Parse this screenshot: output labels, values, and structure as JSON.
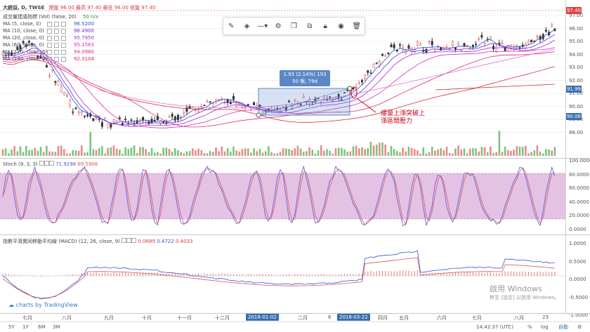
{
  "header": {
    "symbol": "大統益, D, TWSE",
    "ohlc": "開盤 96.00 最高 97.40 最低 96.00 收盤 97.40",
    "volume_label": "成交量建議指標 (Vol) (false, 20)",
    "volume_value": "50 n/a"
  },
  "ma_legend": [
    {
      "label": "MA (5, close, 0)",
      "value": "96.5200",
      "color": "#1f4ed8"
    },
    {
      "label": "MA (10, close, 0)",
      "value": "96.4900",
      "color": "#6b2fd6"
    },
    {
      "label": "MA (20, close, 0)",
      "value": "95.7950",
      "color": "#9a2fd6"
    },
    {
      "label": "MA (60, close, 0)",
      "value": "95.1583",
      "color": "#d62fb8"
    },
    {
      "label": "MA (120, close, 0)",
      "value": "94.0980",
      "color": "#d62f7a"
    },
    {
      "label": "MA (240, close, 0)",
      "value": "92.3104",
      "color": "#d62f3a"
    }
  ],
  "price_axis": [
    "97.00",
    "96.00",
    "95.00",
    "94.00",
    "93.00",
    "92.00",
    "91.00",
    "90.00",
    "89.00",
    "88.00"
  ],
  "price_badges": [
    {
      "text": "97.40",
      "color": "#e04040"
    },
    {
      "text": "91.99",
      "color": "#3a6fb0"
    },
    {
      "text": "90.06",
      "color": "#3a6fb0"
    }
  ],
  "toolbar": {
    "icons": [
      "pencil-icon",
      "fill-icon",
      "line-style-icon",
      "settings-icon",
      "copy-icon",
      "clone-icon",
      "lock-icon",
      "eye-icon",
      "trash-icon"
    ]
  },
  "measure_tooltip": {
    "line1": "1.93 (2.14%) 193",
    "line2": "50 根, 79d"
  },
  "annotation": {
    "line1": "爆量上漲突破上",
    "line2": "漲區間壓力"
  },
  "stoch": {
    "label": "Stoch (9, 3, 3)",
    "k": "71.9298",
    "d": "69.5906",
    "axis": [
      "100.0000",
      "80.0000",
      "60.0000",
      "40.0000",
      "20.0000",
      "0.0000"
    ]
  },
  "macd": {
    "label": "指數平滑異同移動平均線 (MACD) (12, 26, close, 9)",
    "v1": "0.0689",
    "v2": "0.4722",
    "v3": "0.4033",
    "axis": [
      "1.0000",
      "0.5000",
      "0.0000",
      "-0.5000",
      "-1.0000"
    ]
  },
  "time_axis": [
    {
      "label": "七月"
    },
    {
      "label": "八月"
    },
    {
      "label": "九月"
    },
    {
      "label": "十月"
    },
    {
      "label": "十一月"
    },
    {
      "label": "十二月"
    },
    {
      "label": "二月"
    },
    {
      "label": "6"
    },
    {
      "label": "三月"
    },
    {
      "label": "四月"
    },
    {
      "label": "五月"
    },
    {
      "label": "六月"
    },
    {
      "label": "七月"
    },
    {
      "label": "八月"
    },
    {
      "label": "23"
    }
  ],
  "time_highlights": [
    "2018-01-02",
    "2018-03-22"
  ],
  "bottom": {
    "ranges": [
      "5Y",
      "1Y",
      "6M",
      "3M"
    ],
    "clock": "14:42:37 (UTC)",
    "percent": "%",
    "log": "log",
    "auto": "自動"
  },
  "branding": {
    "text": "charts by TradingView"
  },
  "watermark": {
    "line1": "啟用 Windows",
    "line2": "移至 [設定] 以啟用 Windows。"
  },
  "colors": {
    "up": "#e06666",
    "down": "#333333",
    "vol_up": "#e88a8a",
    "vol_down": "#7cc47c",
    "stoch_band": "#d9a8d9",
    "k_line": "#5555dd",
    "d_line": "#dd5555",
    "accent": "#3a6fb0"
  }
}
